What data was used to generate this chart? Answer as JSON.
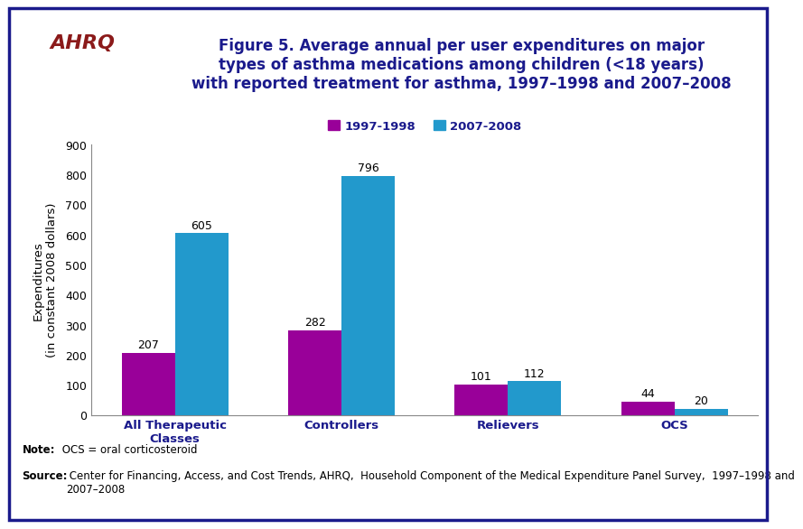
{
  "categories": [
    "All Therapeutic\nClasses",
    "Controllers",
    "Relievers",
    "OCS"
  ],
  "series_1997": [
    207,
    282,
    101,
    44
  ],
  "series_2007": [
    605,
    796,
    112,
    20
  ],
  "color_1997": "#990099",
  "color_2007": "#2299CC",
  "legend_1997": "1997-1998",
  "legend_2007": "2007-2008",
  "ylabel": "Expenditures\n(in constant 2008 dollars)",
  "ylim": [
    0,
    900
  ],
  "yticks": [
    0,
    100,
    200,
    300,
    400,
    500,
    600,
    700,
    800,
    900
  ],
  "title": "Figure 5. Average annual per user expenditures on major\ntypes of asthma medications among children (<18 years)\nwith reported treatment for asthma, 1997–1998 and 2007–2008",
  "title_color": "#1a1a8c",
  "note_bold": "Note:",
  "note_rest": " OCS = oral corticosteroid",
  "source_bold": "Source:",
  "source_rest": " Center for Financing, Access, and Cost Trends, AHRQ,  Household Component of the Medical Expenditure Panel Survey,  1997–1998 and\n2007–2008",
  "bar_width": 0.32,
  "background_color": "#FFFFFF",
  "border_color": "#1a1a8c",
  "separator_color": "#1a1a8c",
  "header_bg": "#FFFFFF",
  "logo_bg": "#2299AA",
  "text_color": "#1a1a8c"
}
